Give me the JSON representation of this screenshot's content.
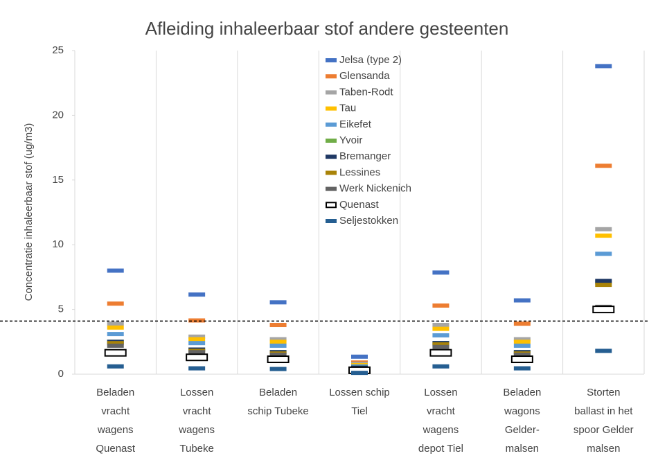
{
  "chart_data": {
    "type": "dash",
    "title": "Afleiding inhaleerbaar stof andere gesteenten",
    "y_label": "Concentratie inhaleerbaar stof (ug/m3)",
    "categories": [
      "Beladen\nvracht\nwagens\nQuenast",
      "Lossen\nvracht\nwagens\nTubeke",
      "Beladen\nschip Tubeke",
      "Lossen schip\nTiel",
      "Lossen\nvracht\nwagens\ndepot Tiel",
      "Beladen\nwagons\nGelder-\nmalsen",
      "Storten\nballast in het\nspoor Gelder\nmalsen"
    ],
    "ylim": [
      0,
      25
    ],
    "yticks": [
      0,
      5,
      10,
      15,
      20,
      25
    ],
    "reference_line": 4.1,
    "legend": "top-center",
    "series": [
      {
        "name": "Jelsa (type 2)",
        "color": "#4472c4",
        "values": [
          8.0,
          6.15,
          5.55,
          1.35,
          7.85,
          5.7,
          23.8
        ]
      },
      {
        "name": "Glensanda",
        "color": "#ed7d31",
        "values": [
          5.45,
          4.15,
          3.8,
          0.9,
          5.3,
          3.9,
          16.1
        ]
      },
      {
        "name": "Taben-Rodt",
        "color": "#a5a5a5",
        "values": [
          3.9,
          2.9,
          2.7,
          0.8,
          3.8,
          2.7,
          11.2
        ]
      },
      {
        "name": "Tau",
        "color": "#ffc000",
        "values": [
          3.6,
          2.7,
          2.5,
          0.7,
          3.5,
          2.5,
          10.7
        ]
      },
      {
        "name": "Eikefet",
        "color": "#5b9bd5",
        "values": [
          3.1,
          2.4,
          2.2,
          0.6,
          3.0,
          2.2,
          9.3
        ]
      },
      {
        "name": "Yvoir",
        "color": "#70ad47",
        "values": [
          2.5,
          1.9,
          1.7,
          0.5,
          2.4,
          1.7,
          7.1
        ]
      },
      {
        "name": "Bremanger",
        "color": "#1f3864",
        "values": [
          2.5,
          1.9,
          1.7,
          0.5,
          2.4,
          1.7,
          7.2
        ]
      },
      {
        "name": "Lessines",
        "color": "#a98308",
        "values": [
          2.4,
          1.8,
          1.6,
          0.4,
          2.3,
          1.6,
          6.9
        ]
      },
      {
        "name": "Werk Nickenich",
        "color": "#636363",
        "values": [
          2.2,
          1.7,
          1.5,
          0.4,
          2.1,
          1.5,
          5.2
        ]
      },
      {
        "name": "Quenast",
        "color": "#000000",
        "hollow": true,
        "values": [
          1.65,
          1.3,
          1.15,
          0.3,
          1.65,
          1.15,
          5.0
        ]
      },
      {
        "name": "Seljestokken",
        "color": "#255e91",
        "values": [
          0.6,
          0.45,
          0.4,
          0.1,
          0.6,
          0.45,
          1.8
        ]
      }
    ]
  }
}
